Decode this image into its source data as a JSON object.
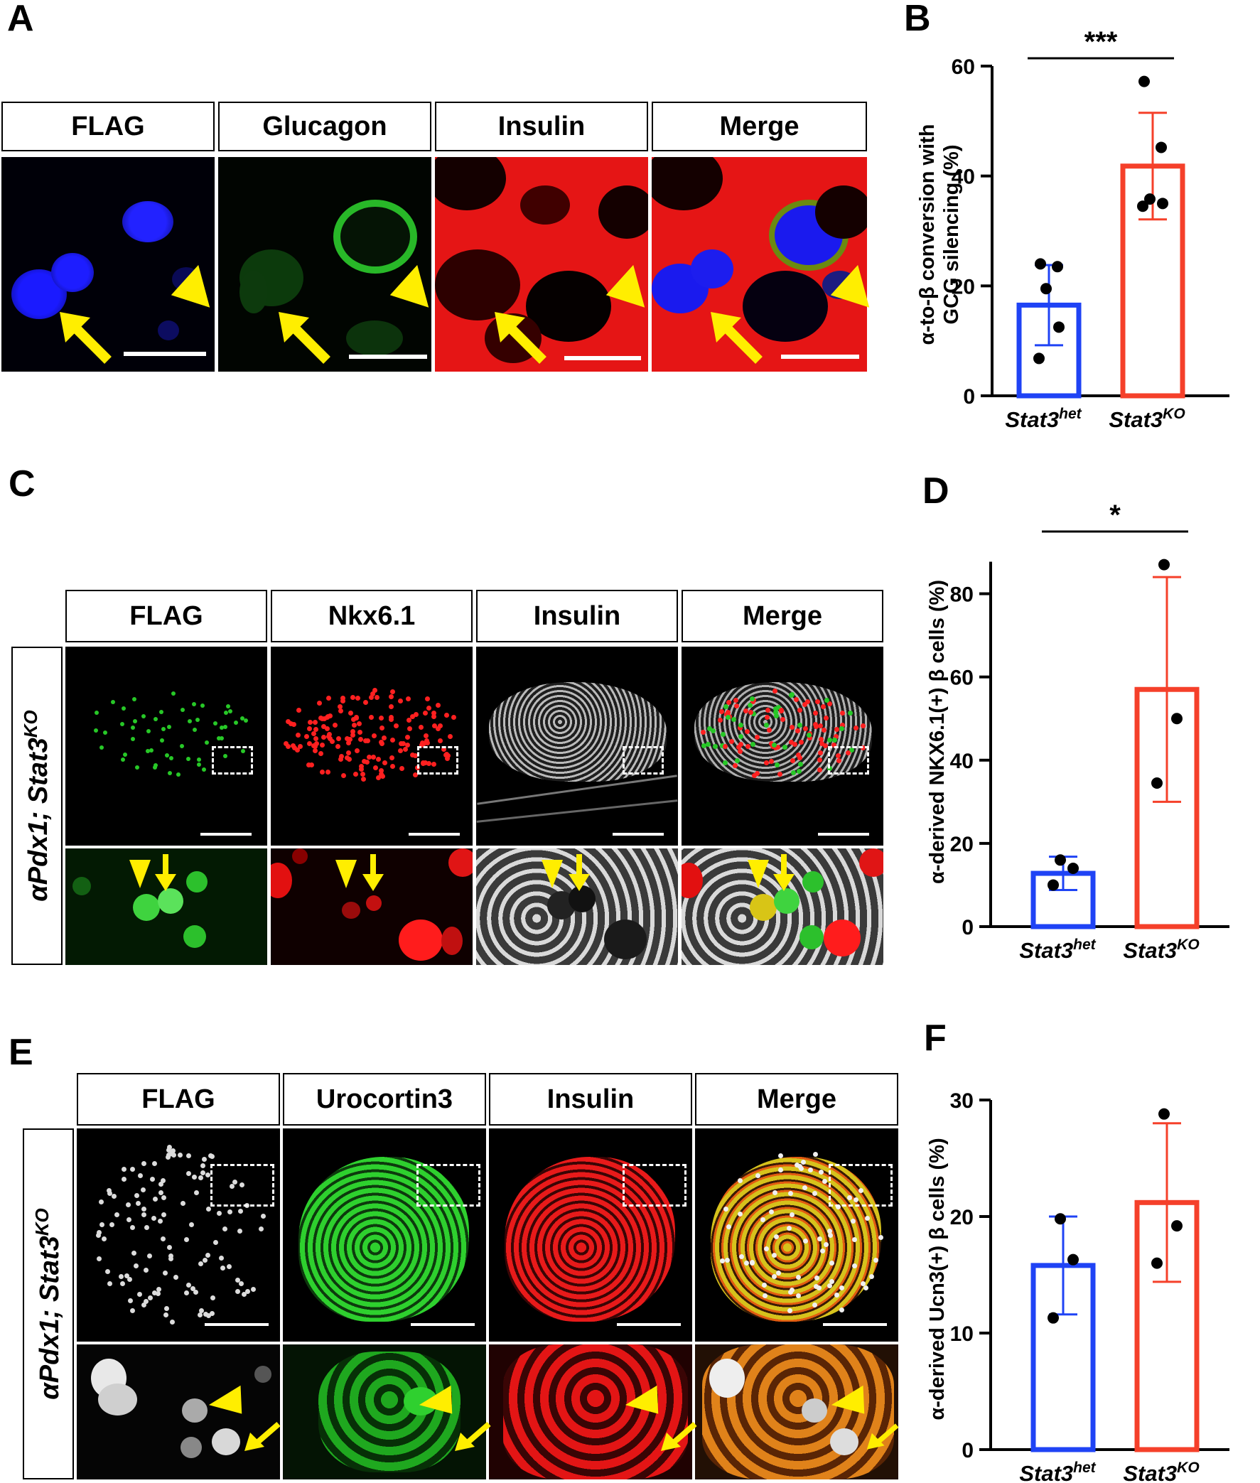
{
  "panels": {
    "A": {
      "letter": "A",
      "channels": [
        "FLAG",
        "Glucagon",
        "Insulin",
        "Merge"
      ]
    },
    "C": {
      "letter": "C",
      "channels": [
        "FLAG",
        "Nkx6.1",
        "Insulin",
        "Merge"
      ],
      "row_label": "αPdx1; Stat3KO"
    },
    "E": {
      "letter": "E",
      "channels": [
        "FLAG",
        "Urocortin3",
        "Insulin",
        "Merge"
      ],
      "row_label": "αPdx1; Stat3KO"
    },
    "B": {
      "letter": "B"
    },
    "D": {
      "letter": "D"
    },
    "F": {
      "letter": "F"
    }
  },
  "colors": {
    "het_bar": "#1f43f5",
    "ko_bar": "#f5402a",
    "arrow": "#ffee00"
  },
  "chart_data": [
    {
      "panel": "B",
      "type": "bar",
      "categories": [
        "Stat3het",
        "Stat3KO"
      ],
      "category_base": [
        "Stat3",
        "Stat3"
      ],
      "category_sup": [
        "het",
        "KO"
      ],
      "ylabel_line1": "α-to-β conversion with",
      "ylabel_line2": "GCG silencing (%)",
      "ylim": [
        0,
        60
      ],
      "yticks": [
        0,
        20,
        40,
        60
      ],
      "means": [
        16.5,
        41.8
      ],
      "sd": [
        7.3,
        9.7
      ],
      "points": [
        [
          6.8,
          12.5,
          19.5,
          23.5,
          24.0
        ],
        [
          34.5,
          35.0,
          35.8,
          45.2,
          57.2
        ]
      ],
      "significance": "***"
    },
    {
      "panel": "D",
      "type": "bar",
      "categories": [
        "Stat3het",
        "Stat3KO"
      ],
      "category_base": [
        "Stat3",
        "Stat3"
      ],
      "category_sup": [
        "het",
        "KO"
      ],
      "ylabel": "α-derived  NKX6.1(+) β cells (%)",
      "ylim": [
        0,
        90
      ],
      "yticks": [
        0,
        20,
        40,
        60,
        80
      ],
      "means": [
        12.8,
        57.0
      ],
      "sd": [
        4.0,
        27.0
      ],
      "points": [
        [
          10.0,
          14.0,
          16.0
        ],
        [
          34.5,
          50.0,
          87.0
        ]
      ],
      "significance": "*"
    },
    {
      "panel": "F",
      "type": "bar",
      "categories": [
        "Stat3het",
        "Stat3KO"
      ],
      "category_base": [
        "Stat3",
        "Stat3"
      ],
      "category_sup": [
        "het",
        "KO"
      ],
      "ylabel": "α-derived  Ucn3(+) β cells (%)",
      "ylim": [
        0,
        30
      ],
      "yticks": [
        0,
        10,
        20,
        30
      ],
      "means": [
        15.8,
        21.2
      ],
      "sd": [
        4.2,
        6.8
      ],
      "points": [
        [
          11.3,
          16.3,
          19.8
        ],
        [
          16.0,
          19.2,
          28.8
        ]
      ],
      "significance": ""
    }
  ]
}
